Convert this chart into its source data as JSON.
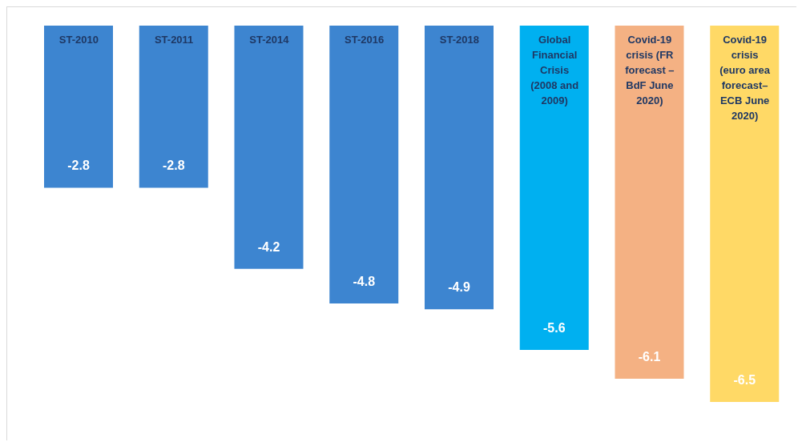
{
  "chart_data": {
    "type": "bar",
    "categories": [
      "ST-2010",
      "ST-2011",
      "ST-2014",
      "ST-2016",
      "ST-2018",
      "Global Financial Crisis (2008 and 2009)",
      "Covid-19 crisis (FR forecast – BdF June 2020)",
      "Covid-19 crisis (euro area forecast– ECB June 2020)"
    ],
    "values": [
      -2.8,
      -2.8,
      -4.2,
      -4.8,
      -4.9,
      -5.6,
      -6.1,
      -6.5
    ],
    "colors": [
      "#3d85d0",
      "#3d85d0",
      "#3d85d0",
      "#3d85d0",
      "#3d85d0",
      "#00b0f0",
      "#f4b183",
      "#ffd966"
    ],
    "data_labels": true
  }
}
